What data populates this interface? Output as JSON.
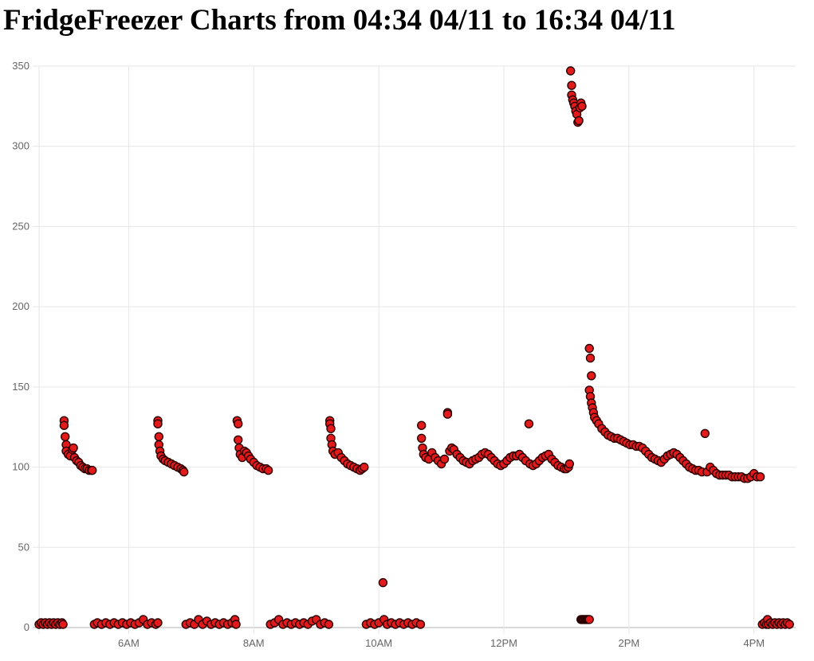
{
  "title": "FridgeFreezer Charts from 04:34 04/11 to 16:34 04/11",
  "colors": {
    "point_fill": "#e31a1c",
    "point_stroke": "#2a0000",
    "grid": "#e6e6e6",
    "tick_text": "#666666"
  },
  "chart_data": {
    "type": "scatter",
    "title": "FridgeFreezer Charts from 04:34 04/11 to 16:34 04/11",
    "xlabel": "",
    "ylabel": "",
    "x_range": [
      "04:34",
      "16:40"
    ],
    "ylim": [
      0,
      350
    ],
    "y_ticks": [
      0,
      50,
      100,
      150,
      200,
      250,
      300,
      350
    ],
    "x_ticks": [
      {
        "time": "06:00",
        "label": "6AM"
      },
      {
        "time": "08:00",
        "label": "8AM"
      },
      {
        "time": "10:00",
        "label": "10AM"
      },
      {
        "time": "12:00",
        "label": "12PM"
      },
      {
        "time": "14:00",
        "label": "2PM"
      },
      {
        "time": "16:00",
        "label": "4PM"
      }
    ],
    "grid": true,
    "legend": "none",
    "series": [
      {
        "points": [
          [
            "04:34",
            2
          ],
          [
            "04:36",
            3
          ],
          [
            "04:38",
            2
          ],
          [
            "04:40",
            3
          ],
          [
            "04:42",
            2
          ],
          [
            "04:44",
            3
          ],
          [
            "04:46",
            2
          ],
          [
            "04:48",
            3
          ],
          [
            "04:50",
            2
          ],
          [
            "04:52",
            3
          ],
          [
            "04:54",
            2
          ],
          [
            "04:56",
            3
          ],
          [
            "04:57",
            2
          ],
          [
            "04:58",
            129
          ],
          [
            "04:58",
            126
          ],
          [
            "04:59",
            119
          ],
          [
            "05:00",
            114
          ],
          [
            "05:00",
            110
          ],
          [
            "05:02",
            108
          ],
          [
            "05:04",
            107
          ],
          [
            "05:06",
            111
          ],
          [
            "05:07",
            112
          ],
          [
            "05:08",
            106
          ],
          [
            "05:10",
            104
          ],
          [
            "05:12",
            103
          ],
          [
            "05:14",
            101
          ],
          [
            "05:16",
            100
          ],
          [
            "05:18",
            99
          ],
          [
            "05:20",
            99
          ],
          [
            "05:22",
            98
          ],
          [
            "05:24",
            98
          ],
          [
            "05:25",
            98
          ],
          [
            "05:27",
            2
          ],
          [
            "05:30",
            3
          ],
          [
            "05:34",
            2
          ],
          [
            "05:38",
            3
          ],
          [
            "05:42",
            2
          ],
          [
            "05:46",
            3
          ],
          [
            "05:50",
            2
          ],
          [
            "05:54",
            3
          ],
          [
            "05:58",
            2
          ],
          [
            "06:02",
            3
          ],
          [
            "06:06",
            2
          ],
          [
            "06:10",
            3
          ],
          [
            "06:14",
            5
          ],
          [
            "06:18",
            2
          ],
          [
            "06:22",
            3
          ],
          [
            "06:26",
            2
          ],
          [
            "06:28",
            3
          ],
          [
            "06:28",
            129
          ],
          [
            "06:28",
            127
          ],
          [
            "06:29",
            119
          ],
          [
            "06:29",
            114
          ],
          [
            "06:30",
            110
          ],
          [
            "06:31",
            107
          ],
          [
            "06:33",
            105
          ],
          [
            "06:35",
            104
          ],
          [
            "06:38",
            103
          ],
          [
            "06:41",
            102
          ],
          [
            "06:44",
            101
          ],
          [
            "06:47",
            100
          ],
          [
            "06:50",
            99
          ],
          [
            "06:52",
            98
          ],
          [
            "06:53",
            97
          ],
          [
            "06:55",
            2
          ],
          [
            "06:59",
            3
          ],
          [
            "07:03",
            2
          ],
          [
            "07:07",
            5
          ],
          [
            "07:11",
            2
          ],
          [
            "07:15",
            4
          ],
          [
            "07:19",
            2
          ],
          [
            "07:23",
            3
          ],
          [
            "07:27",
            2
          ],
          [
            "07:31",
            3
          ],
          [
            "07:35",
            2
          ],
          [
            "07:39",
            3
          ],
          [
            "07:42",
            5
          ],
          [
            "07:43",
            2
          ],
          [
            "07:44",
            129
          ],
          [
            "07:45",
            127
          ],
          [
            "07:45",
            117
          ],
          [
            "07:46",
            112
          ],
          [
            "07:47",
            108
          ],
          [
            "07:49",
            106
          ],
          [
            "07:51",
            110
          ],
          [
            "07:53",
            109
          ],
          [
            "07:55",
            107
          ],
          [
            "07:57",
            105
          ],
          [
            "08:00",
            103
          ],
          [
            "08:03",
            101
          ],
          [
            "08:06",
            100
          ],
          [
            "08:09",
            99
          ],
          [
            "08:12",
            99
          ],
          [
            "08:14",
            98
          ],
          [
            "08:16",
            2
          ],
          [
            "08:20",
            3
          ],
          [
            "08:24",
            5
          ],
          [
            "08:28",
            2
          ],
          [
            "08:32",
            3
          ],
          [
            "08:36",
            2
          ],
          [
            "08:40",
            3
          ],
          [
            "08:44",
            2
          ],
          [
            "08:48",
            3
          ],
          [
            "08:52",
            2
          ],
          [
            "08:56",
            4
          ],
          [
            "09:00",
            5
          ],
          [
            "09:04",
            2
          ],
          [
            "09:08",
            3
          ],
          [
            "09:12",
            2
          ],
          [
            "09:13",
            129
          ],
          [
            "09:13",
            127
          ],
          [
            "09:14",
            124
          ],
          [
            "09:14",
            118
          ],
          [
            "09:15",
            114
          ],
          [
            "09:16",
            110
          ],
          [
            "09:18",
            108
          ],
          [
            "09:21",
            109
          ],
          [
            "09:24",
            106
          ],
          [
            "09:27",
            104
          ],
          [
            "09:30",
            102
          ],
          [
            "09:33",
            101
          ],
          [
            "09:36",
            100
          ],
          [
            "09:39",
            99
          ],
          [
            "09:42",
            98
          ],
          [
            "09:44",
            99
          ],
          [
            "09:46",
            100
          ],
          [
            "09:48",
            2
          ],
          [
            "09:52",
            3
          ],
          [
            "09:56",
            2
          ],
          [
            "10:00",
            3
          ],
          [
            "10:04",
            28
          ],
          [
            "10:05",
            5
          ],
          [
            "10:08",
            2
          ],
          [
            "10:12",
            3
          ],
          [
            "10:16",
            2
          ],
          [
            "10:20",
            3
          ],
          [
            "10:24",
            2
          ],
          [
            "10:28",
            3
          ],
          [
            "10:32",
            2
          ],
          [
            "10:36",
            3
          ],
          [
            "10:40",
            2
          ],
          [
            "10:41",
            126
          ],
          [
            "10:41",
            118
          ],
          [
            "10:42",
            112
          ],
          [
            "10:43",
            108
          ],
          [
            "10:45",
            106
          ],
          [
            "10:48",
            105
          ],
          [
            "10:51",
            109
          ],
          [
            "10:54",
            106
          ],
          [
            "10:57",
            104
          ],
          [
            "11:00",
            102
          ],
          [
            "11:03",
            105
          ],
          [
            "11:06",
            134
          ],
          [
            "11:06",
            133
          ],
          [
            "11:08",
            110
          ],
          [
            "11:10",
            112
          ],
          [
            "11:12",
            111
          ],
          [
            "11:15",
            108
          ],
          [
            "11:18",
            106
          ],
          [
            "11:21",
            104
          ],
          [
            "11:24",
            103
          ],
          [
            "11:27",
            102
          ],
          [
            "11:30",
            104
          ],
          [
            "11:33",
            105
          ],
          [
            "11:36",
            106
          ],
          [
            "11:39",
            108
          ],
          [
            "11:42",
            109
          ],
          [
            "11:45",
            108
          ],
          [
            "11:48",
            106
          ],
          [
            "11:51",
            104
          ],
          [
            "11:54",
            102
          ],
          [
            "11:57",
            101
          ],
          [
            "12:00",
            102
          ],
          [
            "12:03",
            104
          ],
          [
            "12:06",
            106
          ],
          [
            "12:09",
            107
          ],
          [
            "12:12",
            107
          ],
          [
            "12:15",
            108
          ],
          [
            "12:18",
            106
          ],
          [
            "12:21",
            104
          ],
          [
            "12:24",
            127
          ],
          [
            "12:25",
            102
          ],
          [
            "12:28",
            101
          ],
          [
            "12:31",
            102
          ],
          [
            "12:34",
            104
          ],
          [
            "12:37",
            106
          ],
          [
            "12:40",
            107
          ],
          [
            "12:43",
            108
          ],
          [
            "12:46",
            105
          ],
          [
            "12:49",
            103
          ],
          [
            "12:52",
            101
          ],
          [
            "12:55",
            100
          ],
          [
            "12:58",
            99
          ],
          [
            "13:00",
            99
          ],
          [
            "13:02",
            100
          ],
          [
            "13:03",
            102
          ],
          [
            "13:04",
            347
          ],
          [
            "13:05",
            338
          ],
          [
            "13:05",
            332
          ],
          [
            "13:06",
            329
          ],
          [
            "13:07",
            327
          ],
          [
            "13:08",
            325
          ],
          [
            "13:09",
            322
          ],
          [
            "13:10",
            320
          ],
          [
            "13:11",
            315
          ],
          [
            "13:12",
            316
          ],
          [
            "13:13",
            324
          ],
          [
            "13:14",
            327
          ],
          [
            "13:15",
            325
          ],
          [
            "13:14",
            5
          ],
          [
            "13:15",
            5
          ],
          [
            "13:16",
            5
          ],
          [
            "13:17",
            5
          ],
          [
            "13:18",
            5
          ],
          [
            "13:19",
            5
          ],
          [
            "13:20",
            5
          ],
          [
            "13:21",
            5
          ],
          [
            "13:22",
            5
          ],
          [
            "13:22",
            174
          ],
          [
            "13:23",
            168
          ],
          [
            "13:24",
            157
          ],
          [
            "13:22",
            148
          ],
          [
            "13:23",
            144
          ],
          [
            "13:24",
            140
          ],
          [
            "13:25",
            137
          ],
          [
            "13:26",
            134
          ],
          [
            "13:27",
            131
          ],
          [
            "13:29",
            129
          ],
          [
            "13:31",
            127
          ],
          [
            "13:34",
            124
          ],
          [
            "13:37",
            122
          ],
          [
            "13:40",
            120
          ],
          [
            "13:43",
            119
          ],
          [
            "13:46",
            118
          ],
          [
            "13:49",
            118
          ],
          [
            "13:52",
            117
          ],
          [
            "13:55",
            116
          ],
          [
            "13:58",
            115
          ],
          [
            "14:01",
            114
          ],
          [
            "14:04",
            114
          ],
          [
            "14:07",
            113
          ],
          [
            "14:10",
            113
          ],
          [
            "14:13",
            112
          ],
          [
            "14:16",
            110
          ],
          [
            "14:19",
            108
          ],
          [
            "14:22",
            106
          ],
          [
            "14:25",
            105
          ],
          [
            "14:28",
            104
          ],
          [
            "14:31",
            103
          ],
          [
            "14:34",
            105
          ],
          [
            "14:37",
            107
          ],
          [
            "14:40",
            108
          ],
          [
            "14:43",
            109
          ],
          [
            "14:46",
            108
          ],
          [
            "14:49",
            106
          ],
          [
            "14:52",
            104
          ],
          [
            "14:55",
            102
          ],
          [
            "14:58",
            100
          ],
          [
            "15:01",
            99
          ],
          [
            "15:04",
            98
          ],
          [
            "15:07",
            98
          ],
          [
            "15:10",
            97
          ],
          [
            "15:13",
            121
          ],
          [
            "15:15",
            97
          ],
          [
            "15:18",
            100
          ],
          [
            "15:21",
            98
          ],
          [
            "15:24",
            96
          ],
          [
            "15:27",
            95
          ],
          [
            "15:30",
            95
          ],
          [
            "15:33",
            95
          ],
          [
            "15:36",
            95
          ],
          [
            "15:39",
            94
          ],
          [
            "15:42",
            94
          ],
          [
            "15:45",
            94
          ],
          [
            "15:48",
            94
          ],
          [
            "15:51",
            93
          ],
          [
            "15:54",
            93
          ],
          [
            "15:57",
            94
          ],
          [
            "16:00",
            96
          ],
          [
            "16:03",
            94
          ],
          [
            "16:06",
            94
          ],
          [
            "16:08",
            2
          ],
          [
            "16:10",
            3
          ],
          [
            "16:12",
            2
          ],
          [
            "16:13",
            5
          ],
          [
            "16:14",
            2
          ],
          [
            "16:16",
            3
          ],
          [
            "16:18",
            2
          ],
          [
            "16:20",
            3
          ],
          [
            "16:22",
            2
          ],
          [
            "16:24",
            3
          ],
          [
            "16:26",
            2
          ],
          [
            "16:28",
            3
          ],
          [
            "16:30",
            2
          ],
          [
            "16:32",
            3
          ],
          [
            "16:34",
            2
          ]
        ]
      }
    ]
  }
}
